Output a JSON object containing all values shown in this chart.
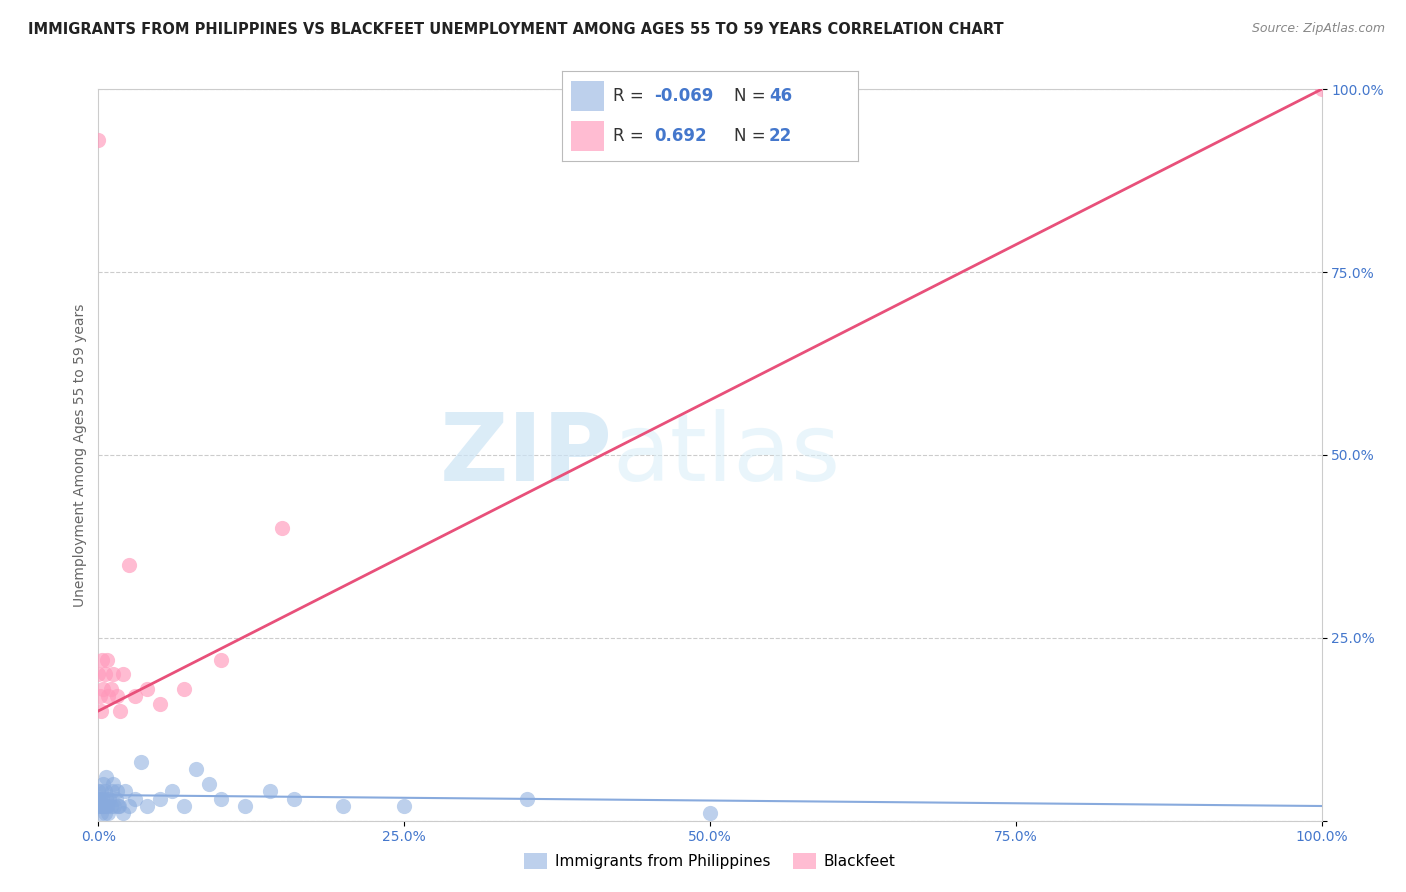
{
  "title": "IMMIGRANTS FROM PHILIPPINES VS BLACKFEET UNEMPLOYMENT AMONG AGES 55 TO 59 YEARS CORRELATION CHART",
  "source": "Source: ZipAtlas.com",
  "ylabel": "Unemployment Among Ages 55 to 59 years",
  "xlim": [
    0,
    1.0
  ],
  "ylim": [
    0,
    1.0
  ],
  "xticks": [
    0.0,
    0.25,
    0.5,
    0.75,
    1.0
  ],
  "yticks": [
    0.0,
    0.25,
    0.5,
    0.75,
    1.0
  ],
  "xticklabels": [
    "0.0%",
    "25.0%",
    "50.0%",
    "75.0%",
    "100.0%"
  ],
  "yticklabels": [
    "",
    "25.0%",
    "50.0%",
    "75.0%",
    "100.0%"
  ],
  "blue_color": "#88AADD",
  "pink_color": "#FF99BB",
  "pink_line_color": "#E8507A",
  "blue_line_color": "#88AADD",
  "blue_R": -0.069,
  "blue_N": 46,
  "pink_R": 0.692,
  "pink_N": 22,
  "legend_label_blue": "Immigrants from Philippines",
  "legend_label_pink": "Blackfeet",
  "watermark_zip": "ZIP",
  "watermark_atlas": "atlas",
  "blue_scatter_x": [
    0.0,
    0.0,
    0.0,
    0.001,
    0.001,
    0.002,
    0.002,
    0.003,
    0.003,
    0.004,
    0.004,
    0.005,
    0.005,
    0.005,
    0.006,
    0.006,
    0.007,
    0.008,
    0.009,
    0.01,
    0.011,
    0.012,
    0.013,
    0.014,
    0.015,
    0.016,
    0.017,
    0.02,
    0.022,
    0.025,
    0.03,
    0.035,
    0.04,
    0.05,
    0.06,
    0.07,
    0.08,
    0.09,
    0.1,
    0.12,
    0.14,
    0.16,
    0.2,
    0.25,
    0.35,
    0.5
  ],
  "blue_scatter_y": [
    0.02,
    0.03,
    0.04,
    0.02,
    0.03,
    0.04,
    0.01,
    0.03,
    0.02,
    0.05,
    0.02,
    0.01,
    0.02,
    0.04,
    0.03,
    0.06,
    0.02,
    0.01,
    0.03,
    0.02,
    0.04,
    0.05,
    0.02,
    0.03,
    0.04,
    0.02,
    0.02,
    0.01,
    0.04,
    0.02,
    0.03,
    0.08,
    0.02,
    0.03,
    0.04,
    0.02,
    0.07,
    0.05,
    0.03,
    0.02,
    0.04,
    0.03,
    0.02,
    0.02,
    0.03,
    0.01
  ],
  "pink_scatter_x": [
    0.0,
    0.0,
    0.001,
    0.002,
    0.003,
    0.004,
    0.005,
    0.007,
    0.008,
    0.01,
    0.012,
    0.015,
    0.018,
    0.02,
    0.025,
    0.03,
    0.04,
    0.05,
    0.07,
    0.1,
    0.15,
    1.0
  ],
  "pink_scatter_y": [
    0.93,
    0.2,
    0.17,
    0.15,
    0.22,
    0.18,
    0.2,
    0.22,
    0.17,
    0.18,
    0.2,
    0.17,
    0.15,
    0.2,
    0.35,
    0.17,
    0.18,
    0.16,
    0.18,
    0.22,
    0.4,
    1.0
  ],
  "pink_line_x0": 0.0,
  "pink_line_y0": 0.15,
  "pink_line_x1": 1.0,
  "pink_line_y1": 1.0,
  "blue_line_x0": 0.0,
  "blue_line_y0": 0.035,
  "blue_line_x1": 1.0,
  "blue_line_y1": 0.02
}
